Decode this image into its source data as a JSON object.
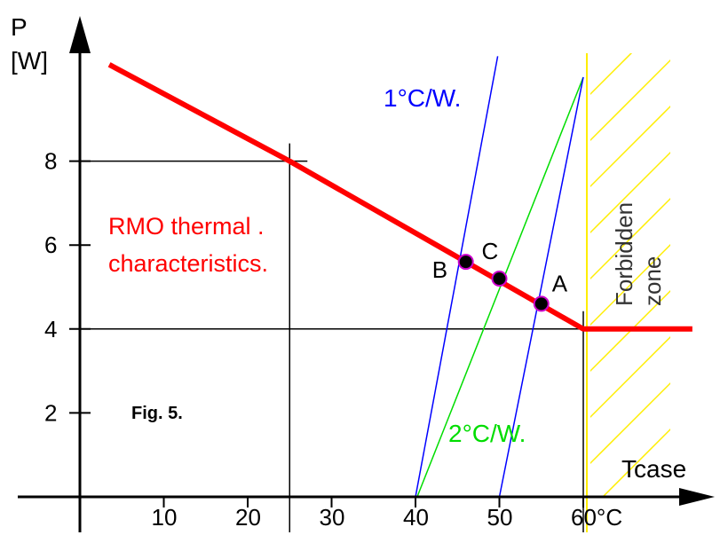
{
  "axis": {
    "y_title_top": "P",
    "y_title_bottom": "[W]",
    "x_title": "Tcase",
    "x_ticks": [
      "10",
      "20",
      "30",
      "40",
      "50",
      "60°C"
    ],
    "y_ticks": [
      "2",
      "4",
      "6",
      "8"
    ]
  },
  "chart_data": {
    "type": "line",
    "xlim": [
      0,
      72
    ],
    "ylim": [
      0,
      11
    ],
    "series": [
      {
        "points": [
          [
            3.5,
            10.3
          ],
          [
            25,
            8
          ],
          [
            60,
            4
          ],
          [
            73,
            4
          ]
        ]
      }
    ],
    "wall_temperature": 60,
    "thermal_resistance_lines": [
      {
        "points": [
          [
            40,
            0
          ],
          [
            49.8,
            10.5
          ]
        ]
      },
      {
        "points": [
          [
            40.2,
            0
          ],
          [
            60,
            10
          ]
        ]
      },
      {
        "points": [
          [
            50,
            0
          ],
          [
            60,
            10
          ]
        ]
      }
    ],
    "points": [
      {
        "label": "B",
        "x": 46,
        "y": 5.6
      },
      {
        "label": "C",
        "x": 50,
        "y": 5.2
      },
      {
        "label": "A",
        "x": 55,
        "y": 4.6
      }
    ],
    "guide_lines": [
      [
        25,
        8
      ],
      [
        60,
        4
      ]
    ]
  },
  "labels": {
    "thermal_line1": "RMO thermal .",
    "thermal_line2": "characteristics.",
    "fig": "Fig. 5.",
    "line_1cw": "1°C/W.",
    "line_2cw": "2°C/W.",
    "zone_line1": "Forbidden",
    "zone_line2": "zone"
  },
  "colors": {
    "characteristic": "#ff0000",
    "line_1cw": "#0000ff",
    "line_2cw": "#00dd00",
    "forbidden": "#ffee00",
    "point_fill": "#000000",
    "point_ring": "#cc00cc"
  }
}
